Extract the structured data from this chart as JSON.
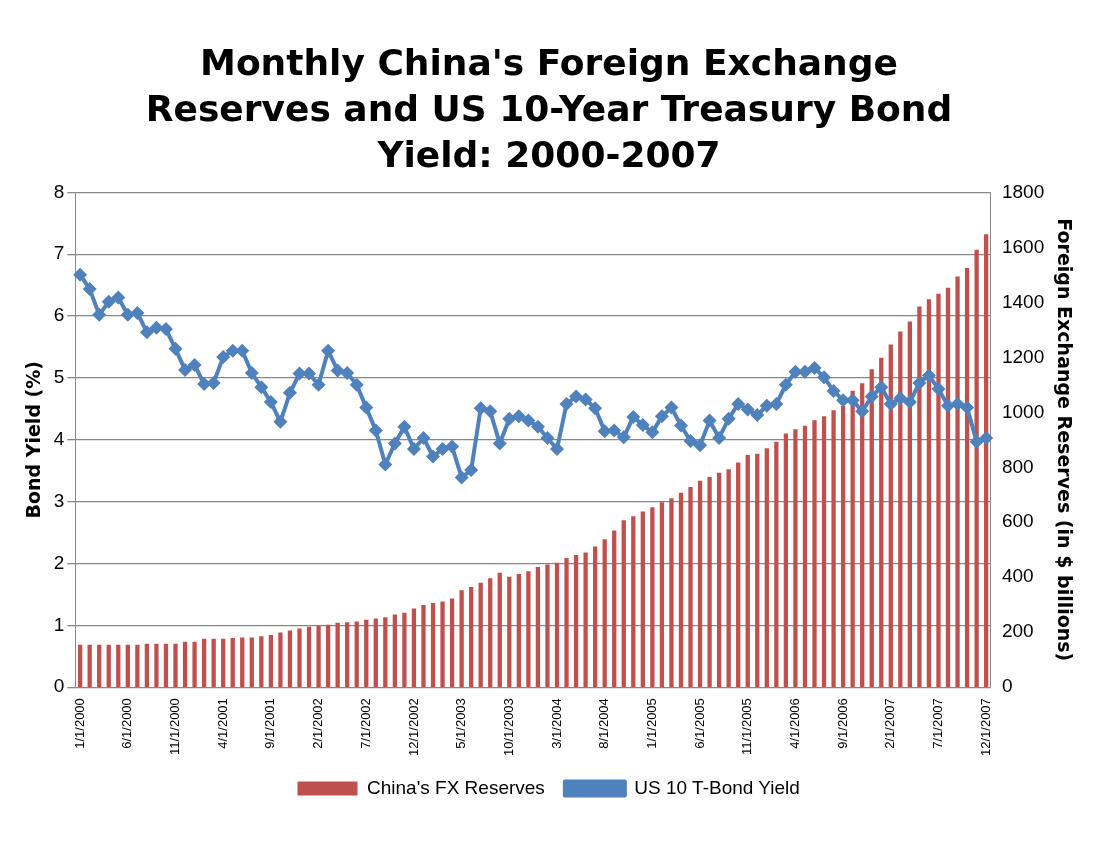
{
  "chart_data": {
    "type": "bar",
    "title": "Monthly China's Foreign Exchange Reserves and US 10-Year Treasury Bond Yield: 2000-2007",
    "ylabel": "Bond Yield (%)",
    "y2label": "Foreign Exchange Reserves (in $ billions)",
    "categories": [
      "1/1/2000",
      null,
      null,
      null,
      null,
      "6/1/2000",
      null,
      null,
      null,
      null,
      "11/1/2000",
      null,
      null,
      null,
      null,
      "4/1/2001",
      null,
      null,
      null,
      null,
      "9/1/2001",
      null,
      null,
      null,
      null,
      "2/1/2002",
      null,
      null,
      null,
      null,
      "7/1/2002",
      null,
      null,
      null,
      null,
      "12/1/2002",
      null,
      null,
      null,
      null,
      "5/1/2003",
      null,
      null,
      null,
      null,
      "10/1/2003",
      null,
      null,
      null,
      null,
      "3/1/2004",
      null,
      null,
      null,
      null,
      "8/1/2004",
      null,
      null,
      null,
      null,
      "1/1/2005",
      null,
      null,
      null,
      null,
      "6/1/2005",
      null,
      null,
      null,
      null,
      "11/1/2005",
      null,
      null,
      null,
      null,
      "4/1/2006",
      null,
      null,
      null,
      null,
      "9/1/2006",
      null,
      null,
      null,
      null,
      "2/1/2007",
      null,
      null,
      null,
      null,
      "7/1/2007",
      null,
      null,
      null,
      null,
      "12/1/2007"
    ],
    "series": [
      {
        "name": "China's FX Reserves",
        "axis": "y2",
        "color": "#c0504d",
        "values": [
          154,
          154,
          154,
          154,
          154,
          154,
          154,
          158,
          158,
          158,
          158,
          165,
          165,
          176,
          176,
          176,
          179,
          181,
          181,
          185,
          190,
          199,
          206,
          213,
          220,
          223,
          227,
          234,
          236,
          239,
          245,
          250,
          254,
          264,
          271,
          286,
          299,
          306,
          312,
          323,
          353,
          364,
          380,
          396,
          416,
          402,
          412,
          422,
          437,
          446,
          453,
          470,
          481,
          490,
          512,
          538,
          570,
          607,
          622,
          639,
          655,
          673,
          687,
          707,
          728,
          751,
          765,
          780,
          793,
          817,
          845,
          849,
          869,
          893,
          923,
          938,
          951,
          971,
          986,
          1007,
          1023,
          1078,
          1106,
          1157,
          1198,
          1247,
          1294,
          1330,
          1385,
          1411,
          1431,
          1453,
          1494,
          1525,
          1591,
          1648
        ]
      },
      {
        "name": "US 10 T-Bond Yield",
        "type": "line",
        "axis": "y",
        "color": "#4f81bd",
        "values": [
          6.67,
          6.44,
          6.02,
          6.23,
          6.3,
          6.02,
          6.05,
          5.74,
          5.81,
          5.79,
          5.47,
          5.13,
          5.21,
          4.9,
          4.92,
          5.34,
          5.44,
          5.44,
          5.08,
          4.85,
          4.61,
          4.29,
          4.76,
          5.07,
          5.07,
          4.89,
          5.44,
          5.12,
          5.08,
          4.89,
          4.52,
          4.15,
          3.6,
          3.94,
          4.21,
          3.85,
          4.03,
          3.73,
          3.85,
          3.89,
          3.39,
          3.51,
          4.51,
          4.46,
          3.94,
          4.34,
          4.38,
          4.31,
          4.21,
          4.03,
          3.85,
          4.58,
          4.7,
          4.65,
          4.51,
          4.14,
          4.15,
          4.04,
          4.37,
          4.24,
          4.12,
          4.38,
          4.52,
          4.23,
          3.98,
          3.91,
          4.31,
          4.03,
          4.34,
          4.58,
          4.49,
          4.4,
          4.55,
          4.58,
          4.89,
          5.1,
          5.1,
          5.16,
          5.01,
          4.79,
          4.64,
          4.64,
          4.46,
          4.7,
          4.85,
          4.58,
          4.67,
          4.61,
          4.92,
          5.04,
          4.82,
          4.55,
          4.58,
          4.52,
          3.97,
          4.03
        ]
      }
    ],
    "ylim": [
      0,
      8
    ],
    "yticks": [
      0,
      1,
      2,
      3,
      4,
      5,
      6,
      7,
      8
    ],
    "y2lim": [
      0,
      1800
    ],
    "y2ticks": [
      0,
      200,
      400,
      600,
      800,
      1000,
      1200,
      1400,
      1600,
      1800
    ],
    "grid": "y",
    "legend": "bottom",
    "marker": "diamond",
    "line_style": "solid"
  }
}
